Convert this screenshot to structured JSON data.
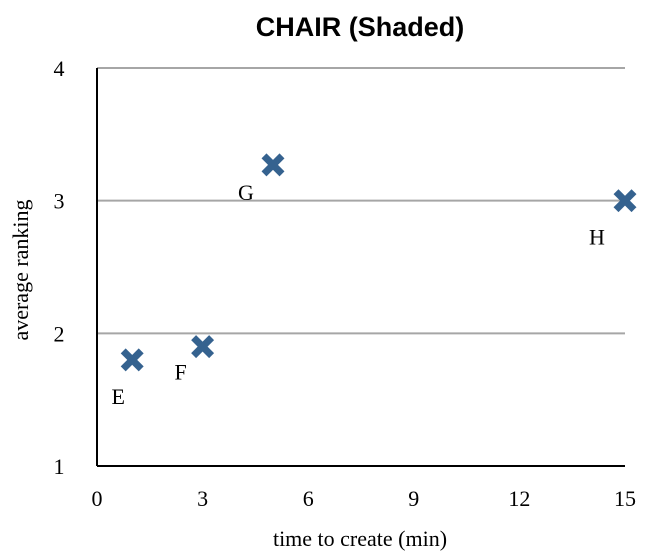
{
  "chart_data": {
    "type": "scatter",
    "title": "CHAIR (Shaded)",
    "xlabel": "time to create (min)",
    "ylabel": "average ranking",
    "xlim": [
      0,
      15
    ],
    "ylim": [
      1,
      4
    ],
    "x_ticks": [
      0,
      3,
      6,
      9,
      12,
      15
    ],
    "y_ticks": [
      1,
      2,
      3,
      4
    ],
    "grid": "horizontal",
    "marker_color": "#35628f",
    "series": [
      {
        "points": [
          {
            "label": "E",
            "x": 1,
            "y": 1.8
          },
          {
            "label": "F",
            "x": 3,
            "y": 1.9
          },
          {
            "label": "G",
            "x": 5,
            "y": 3.27
          },
          {
            "label": "H",
            "x": 15,
            "y": 3.0
          }
        ]
      }
    ]
  }
}
